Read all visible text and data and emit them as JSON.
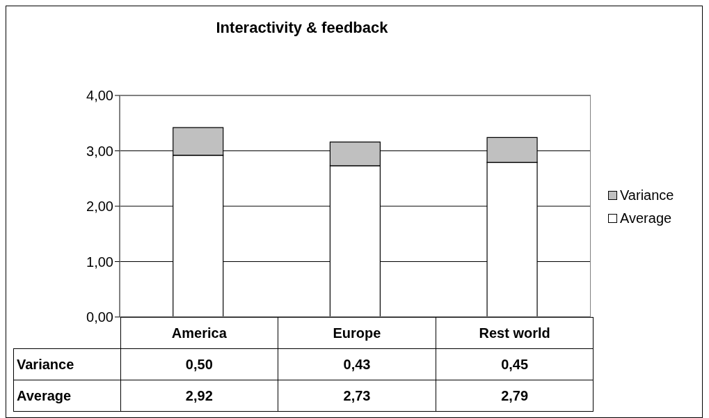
{
  "chart_data": {
    "type": "bar",
    "title": "Interactivity & feedback",
    "categories": [
      "America",
      "Europe",
      "Rest world"
    ],
    "stacked": true,
    "series": [
      {
        "name": "Average",
        "color": "#ffffff",
        "values": [
          2.92,
          2.73,
          2.79
        ],
        "value_labels": [
          "2,92",
          "2,73",
          "2,79"
        ]
      },
      {
        "name": "Variance",
        "color": "#c0c0c0",
        "values": [
          0.5,
          0.43,
          0.45
        ],
        "value_labels": [
          "0,50",
          "0,43",
          "0,45"
        ]
      }
    ],
    "ylim": [
      0,
      4
    ],
    "yticks": [
      {
        "value": 0,
        "label": "0,00"
      },
      {
        "value": 1,
        "label": "1,00"
      },
      {
        "value": 2,
        "label": "2,00"
      },
      {
        "value": 3,
        "label": "3,00"
      },
      {
        "value": 4,
        "label": "4,00"
      }
    ],
    "grid": "y",
    "legend": "right"
  }
}
